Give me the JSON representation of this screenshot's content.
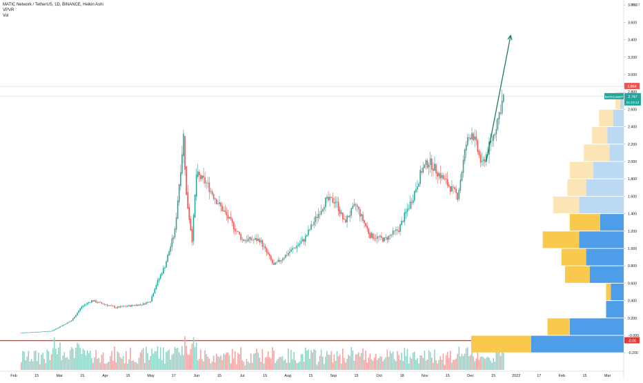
{
  "header": {
    "title": "MATIC Network / TetherUS, 1D, BINANCE, Heikin Ashi",
    "indicators": [
      "VPVR",
      "Vol"
    ]
  },
  "price_axis": {
    "currency": "USDT",
    "current_label": "MATICUSDT",
    "current_price": "2.747",
    "countdown": "21:10:12",
    "high_label": "2.864",
    "support_label": "-0.06",
    "zero_label": "−0.000"
  },
  "colors": {
    "up": "#26a69a",
    "down": "#ef5350",
    "arrow": "#1b7d4e",
    "support": "#e53935",
    "vpvr_up": "#4e9de9",
    "vpvr_down": "#f9c94e",
    "vpvr_up_va": "#bcd9f4",
    "vpvr_down_va": "#fbe5b6"
  },
  "chart_data": {
    "type": "candlestick",
    "title": "MATIC Network / TetherUS, 1D, BINANCE, Heikin Ashi",
    "ylabel": "USDT",
    "ylim": [
      -0.28,
      3.8
    ],
    "yticks": [
      -0.2,
      0.0,
      0.2,
      0.4,
      0.6,
      0.8,
      1.0,
      1.2,
      1.4,
      1.6,
      1.8,
      2.0,
      2.2,
      2.4,
      2.6,
      2.8,
      3.0,
      3.2,
      3.4,
      3.6,
      3.8
    ],
    "ytick_labels": [
      "-0.200",
      "−0.000",
      "0.200",
      "0.400",
      "0.600",
      "0.800",
      "1.000",
      "1.200",
      "1.400",
      "1.600",
      "1.800",
      "2.000",
      "2.200",
      "2.400",
      "2.600",
      "2.800",
      "3.000",
      "3.200",
      "3.400",
      "3.600",
      "3.800"
    ],
    "xtick_labels": [
      "Feb",
      "15",
      "Mar",
      "15",
      "Apr",
      "15",
      "May",
      "17",
      "Jun",
      "15",
      "Jul",
      "15",
      "Aug",
      "15",
      "Sep",
      "15",
      "Oct",
      "18",
      "Nov",
      "15",
      "Dec",
      "15",
      "2022",
      "17",
      "Feb",
      "15",
      "Mar"
    ],
    "date_range": [
      "2021-01-25",
      "2021-12-27"
    ],
    "price_path": [
      {
        "date": "2021-01-25",
        "price": 0.03
      },
      {
        "date": "2021-02-15",
        "price": 0.05
      },
      {
        "date": "2021-03-01",
        "price": 0.17
      },
      {
        "date": "2021-03-08",
        "price": 0.33
      },
      {
        "date": "2021-03-15",
        "price": 0.4
      },
      {
        "date": "2021-04-01",
        "price": 0.32
      },
      {
        "date": "2021-04-20",
        "price": 0.36
      },
      {
        "date": "2021-04-25",
        "price": 0.4
      },
      {
        "date": "2021-04-28",
        "price": 0.55
      },
      {
        "date": "2021-05-05",
        "price": 0.8
      },
      {
        "date": "2021-05-12",
        "price": 1.2
      },
      {
        "date": "2021-05-18",
        "price": 2.3
      },
      {
        "date": "2021-05-20",
        "price": 1.6
      },
      {
        "date": "2021-05-24",
        "price": 1.1
      },
      {
        "date": "2021-05-27",
        "price": 1.85
      },
      {
        "date": "2021-06-03",
        "price": 1.75
      },
      {
        "date": "2021-06-10",
        "price": 1.55
      },
      {
        "date": "2021-06-20",
        "price": 1.3
      },
      {
        "date": "2021-06-28",
        "price": 1.1
      },
      {
        "date": "2021-07-10",
        "price": 1.1
      },
      {
        "date": "2021-07-20",
        "price": 0.8
      },
      {
        "date": "2021-07-30",
        "price": 0.95
      },
      {
        "date": "2021-08-10",
        "price": 1.1
      },
      {
        "date": "2021-08-25",
        "price": 1.55
      },
      {
        "date": "2021-09-01",
        "price": 1.55
      },
      {
        "date": "2021-09-07",
        "price": 1.3
      },
      {
        "date": "2021-09-15",
        "price": 1.5
      },
      {
        "date": "2021-09-25",
        "price": 1.15
      },
      {
        "date": "2021-10-05",
        "price": 1.1
      },
      {
        "date": "2021-10-15",
        "price": 1.22
      },
      {
        "date": "2021-10-25",
        "price": 1.6
      },
      {
        "date": "2021-10-31",
        "price": 1.9
      },
      {
        "date": "2021-11-05",
        "price": 2.0
      },
      {
        "date": "2021-11-15",
        "price": 1.8
      },
      {
        "date": "2021-11-25",
        "price": 1.6
      },
      {
        "date": "2021-12-01",
        "price": 2.2
      },
      {
        "date": "2021-12-05",
        "price": 2.35
      },
      {
        "date": "2021-12-12",
        "price": 1.95
      },
      {
        "date": "2021-12-20",
        "price": 2.3
      },
      {
        "date": "2021-12-27",
        "price": 2.747
      }
    ],
    "series": [
      {
        "name": "MATICUSDT",
        "last": 2.747,
        "high": 2.864
      }
    ],
    "annotations": {
      "support_line": -0.06,
      "arrow": {
        "from": {
          "date": "2021-12-15",
          "price": 2.0
        },
        "to": {
          "date": "2022-01-01",
          "price": 3.45
        }
      }
    },
    "volume_profile": {
      "row_size": 0.2,
      "rows": [
        {
          "price": 2.6,
          "up": 3,
          "down": 4
        },
        {
          "price": 2.4,
          "up": 9,
          "down": 12
        },
        {
          "price": 2.2,
          "up": 14,
          "down": 13
        },
        {
          "price": 2.0,
          "up": 12,
          "down": 22
        },
        {
          "price": 1.8,
          "up": 26,
          "down": 20
        },
        {
          "price": 1.6,
          "up": 32,
          "down": 16
        },
        {
          "price": 1.4,
          "up": 38,
          "down": 22
        },
        {
          "price": 1.2,
          "up": 20,
          "down": 26
        },
        {
          "price": 1.0,
          "up": 38,
          "down": 31
        },
        {
          "price": 0.8,
          "up": 32,
          "down": 21
        },
        {
          "price": 0.6,
          "up": 29,
          "down": 21
        },
        {
          "price": 0.4,
          "up": 11,
          "down": 4
        },
        {
          "price": 0.2,
          "up": 15,
          "down": 0
        },
        {
          "price": 0.0,
          "up": 46,
          "down": 19
        },
        {
          "price": -0.2,
          "up": 79,
          "down": 51
        }
      ]
    },
    "legend": "top-left",
    "grid": false
  }
}
